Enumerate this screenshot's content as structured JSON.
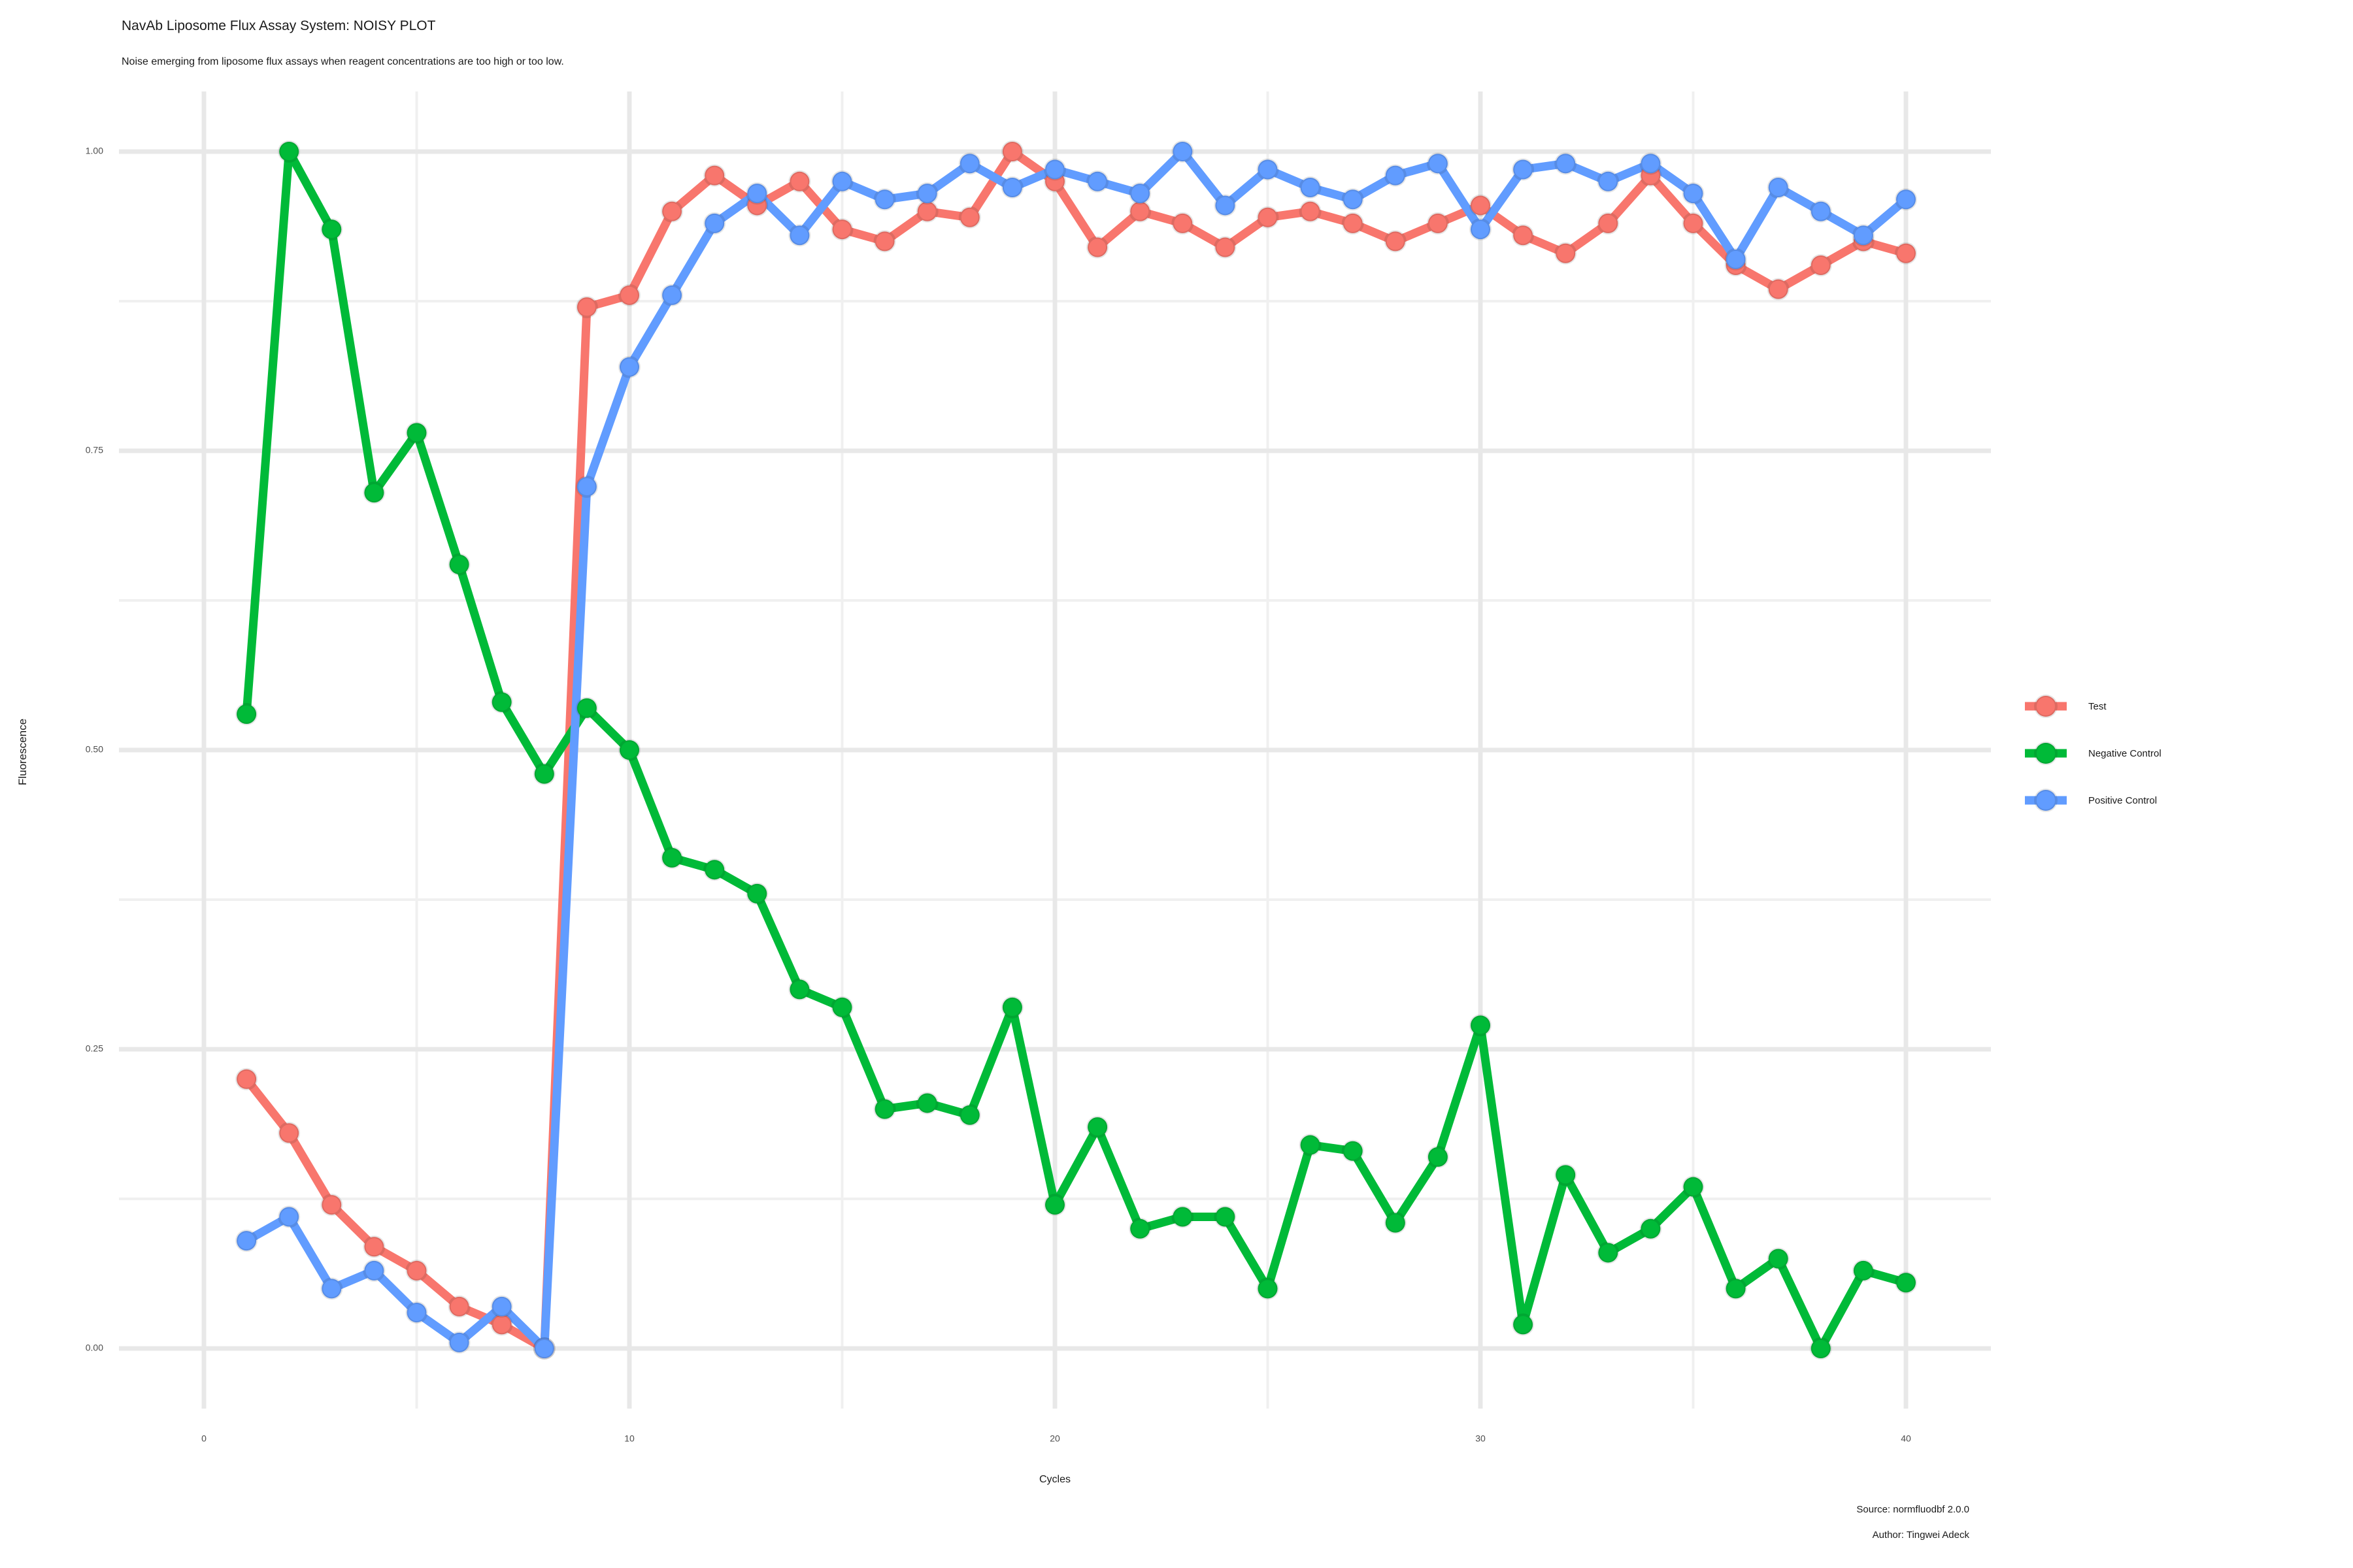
{
  "header": {
    "title": "NavAb Liposome Flux Assay System: NOISY PLOT",
    "subtitle": "Noise emerging from liposome flux assays when reagent concentrations are too high or too low."
  },
  "caption": {
    "source": "Source: normfluodbf 2.0.0",
    "author": "Author: Tingwei Adeck"
  },
  "chart_data": {
    "type": "line",
    "title": "NavAb Liposome Flux Assay System: NOISY PLOT",
    "subtitle": "Noise emerging from liposome flux assays when reagent concentrations are too high or too low.",
    "xlabel": "Cycles",
    "ylabel": "Fluorescence",
    "xlim": [
      0,
      40
    ],
    "ylim": [
      0,
      1
    ],
    "grid": "major+minor, light gray on white panel",
    "legend_position": "right",
    "x": [
      1,
      2,
      3,
      4,
      5,
      6,
      7,
      8,
      9,
      10,
      11,
      12,
      13,
      14,
      15,
      16,
      17,
      18,
      19,
      20,
      21,
      22,
      23,
      24,
      25,
      26,
      27,
      28,
      29,
      30,
      31,
      32,
      33,
      34,
      35,
      36,
      37,
      38,
      39,
      40
    ],
    "x_ticks": [
      {
        "value": 0,
        "label": "0"
      },
      {
        "value": 10,
        "label": "10"
      },
      {
        "value": 20,
        "label": "20"
      },
      {
        "value": 30,
        "label": "30"
      },
      {
        "value": 40,
        "label": "40"
      }
    ],
    "x_minor_ticks": [
      5,
      15,
      25,
      35
    ],
    "y_ticks": [
      {
        "value": 0.0,
        "label": "0.00"
      },
      {
        "value": 0.25,
        "label": "0.25"
      },
      {
        "value": 0.5,
        "label": "0.50"
      },
      {
        "value": 0.75,
        "label": "0.75"
      },
      {
        "value": 1.0,
        "label": "1.00"
      }
    ],
    "y_minor_ticks": [
      0.125,
      0.375,
      0.625,
      0.875
    ],
    "series": [
      {
        "name": "Test",
        "color": "#F8766D",
        "values": [
          0.225,
          0.18,
          0.12,
          0.085,
          0.065,
          0.035,
          0.02,
          0.0,
          0.87,
          0.88,
          0.95,
          0.98,
          0.955,
          0.975,
          0.935,
          0.925,
          0.95,
          0.945,
          1.0,
          0.975,
          0.92,
          0.95,
          0.94,
          0.92,
          0.945,
          0.95,
          0.94,
          0.925,
          0.94,
          0.955,
          0.93,
          0.915,
          0.94,
          0.98,
          0.94,
          0.905,
          0.885,
          0.905,
          0.925,
          0.915
        ]
      },
      {
        "name": "Negative Control",
        "color": "#00BA38",
        "values": [
          0.53,
          1.0,
          0.935,
          0.715,
          0.765,
          0.655,
          0.54,
          0.48,
          0.535,
          0.5,
          0.41,
          0.4,
          0.38,
          0.3,
          0.285,
          0.2,
          0.205,
          0.195,
          0.285,
          0.12,
          0.185,
          0.1,
          0.11,
          0.11,
          0.05,
          0.17,
          0.165,
          0.105,
          0.16,
          0.27,
          0.02,
          0.145,
          0.08,
          0.1,
          0.135,
          0.05,
          0.075,
          0.0,
          0.065,
          0.055
        ]
      },
      {
        "name": "Positive Control",
        "color": "#619CFF",
        "values": [
          0.09,
          0.11,
          0.05,
          0.065,
          0.03,
          0.005,
          0.035,
          0.0,
          0.72,
          0.82,
          0.88,
          0.94,
          0.965,
          0.93,
          0.975,
          0.96,
          0.965,
          0.99,
          0.97,
          0.985,
          0.975,
          0.965,
          1.0,
          0.955,
          0.985,
          0.97,
          0.96,
          0.98,
          0.99,
          0.935,
          0.985,
          0.99,
          0.975,
          0.99,
          0.965,
          0.91,
          0.97,
          0.95,
          0.93,
          0.96
        ]
      }
    ],
    "style": {
      "grid_major_color": "#e8e8e8",
      "grid_minor_color": "#f0f0f0",
      "tick_label_color": "#4d4d4d",
      "text_color": "#1a1a1a",
      "line_width": 13,
      "point_radius": 15
    }
  }
}
